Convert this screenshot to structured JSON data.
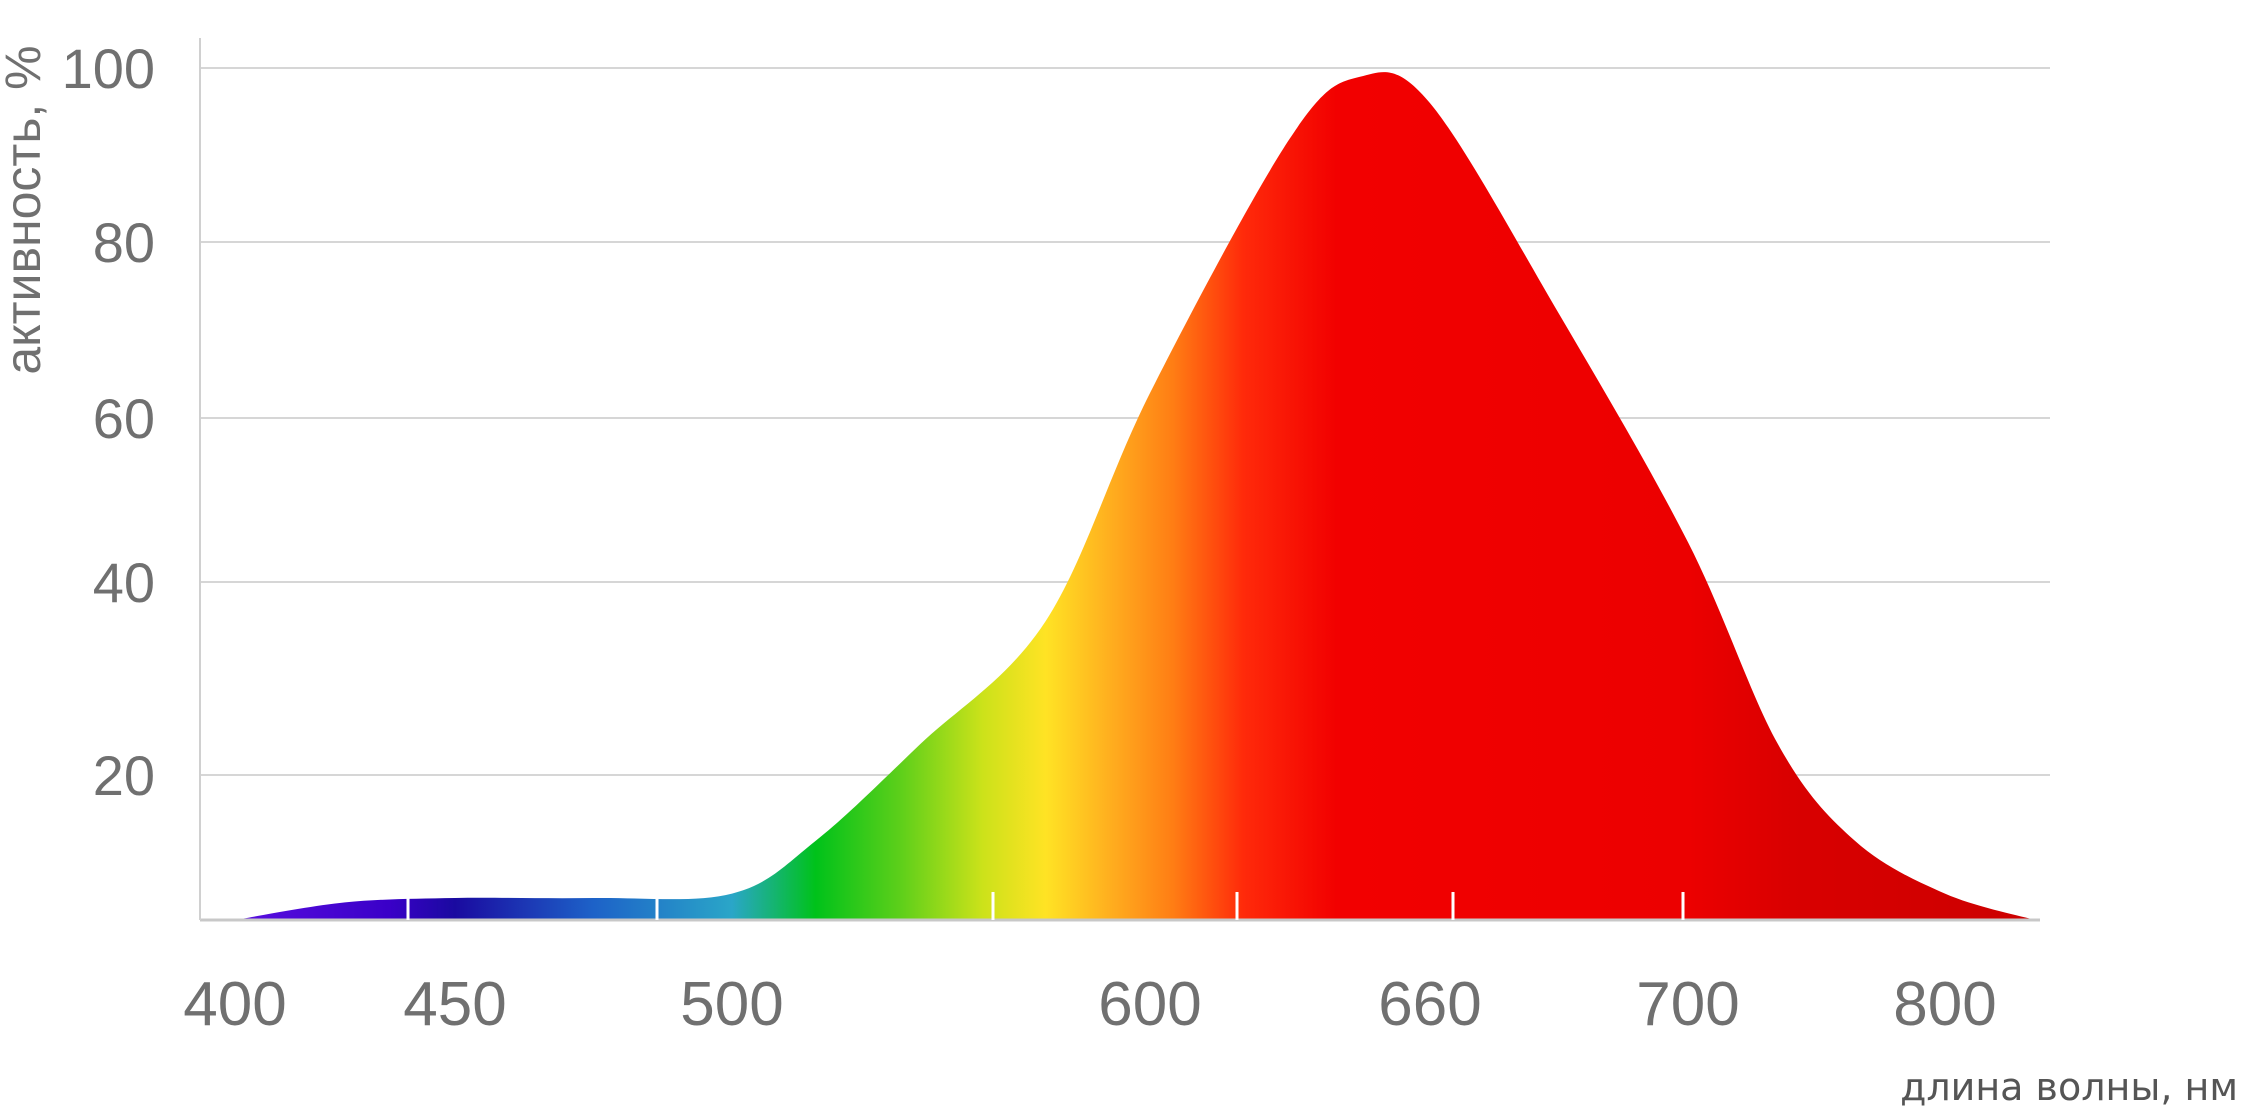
{
  "chart_data": {
    "type": "area",
    "title": "",
    "xlabel": "длина волны, нм",
    "ylabel": "активность, %",
    "x_ticks": [
      "400",
      "450",
      "500",
      "600",
      "660",
      "700",
      "800"
    ],
    "y_ticks": [
      "20",
      "40",
      "60",
      "80",
      "100"
    ],
    "ylim": [
      3,
      100
    ],
    "grid": true,
    "legend": "none",
    "x_axis_note": "non-linear wavelength axis; points indexed by tick position",
    "series": [
      {
        "x": [
          400,
          425,
          450,
          475,
          500,
          520,
          545,
          575,
          600,
          630,
          645,
          660,
          680,
          700,
          735,
          765,
          800,
          822
        ],
        "values": [
          3,
          5,
          5.5,
          5.5,
          6,
          12,
          23,
          37,
          63,
          92,
          99,
          96,
          72,
          46,
          23,
          12,
          6,
          3
        ]
      }
    ],
    "spectrum_colors": [
      {
        "nm": 400,
        "color": "#5a0fe0"
      },
      {
        "nm": 435,
        "color": "#3a00c8"
      },
      {
        "nm": 450,
        "color": "#1a0aa0"
      },
      {
        "nm": 475,
        "color": "#1d62c8"
      },
      {
        "nm": 500,
        "color": "#2aa6c8"
      },
      {
        "nm": 520,
        "color": "#00c21a"
      },
      {
        "nm": 540,
        "color": "#5ccf1a"
      },
      {
        "nm": 560,
        "color": "#cce21a"
      },
      {
        "nm": 575,
        "color": "#ffe324"
      },
      {
        "nm": 590,
        "color": "#ffb01f"
      },
      {
        "nm": 605,
        "color": "#ff7d14"
      },
      {
        "nm": 620,
        "color": "#ff2a0a"
      },
      {
        "nm": 640,
        "color": "#f20000"
      },
      {
        "nm": 700,
        "color": "#ec0000"
      },
      {
        "nm": 740,
        "color": "#d90000"
      },
      {
        "nm": 822,
        "color": "#cc0000"
      }
    ]
  }
}
